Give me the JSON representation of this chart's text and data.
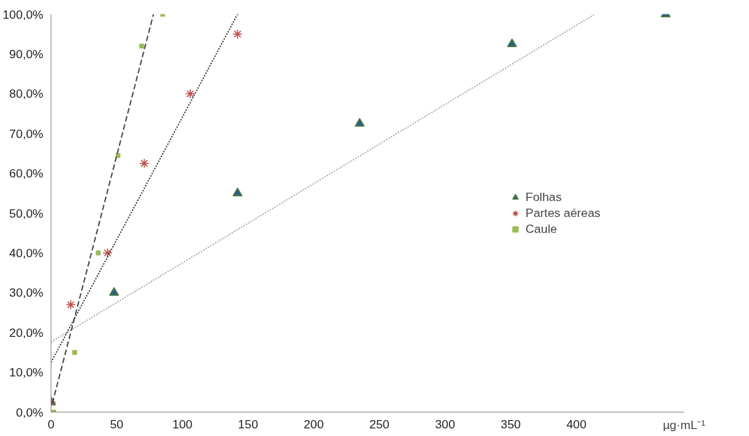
{
  "chart_data": {
    "type": "scatter",
    "xlabel": "µg·mL⁻¹",
    "xlim": [
      0,
      482
    ],
    "ylim": [
      0,
      100
    ],
    "xticks": [
      0,
      50,
      100,
      150,
      200,
      250,
      300,
      350,
      400
    ],
    "yticks": [
      {
        "value": 0,
        "label": "0,0%"
      },
      {
        "value": 10,
        "label": "10,0%"
      },
      {
        "value": 20,
        "label": "20,0%"
      },
      {
        "value": 30,
        "label": "30,0%"
      },
      {
        "value": 40,
        "label": "40,0%"
      },
      {
        "value": 50,
        "label": "50,0%"
      },
      {
        "value": 60,
        "label": "60,0%"
      },
      {
        "value": 70,
        "label": "70,0%"
      },
      {
        "value": 80,
        "label": "80,0%"
      },
      {
        "value": 90,
        "label": "90,0%"
      },
      {
        "value": 100,
        "label": "100,0%"
      }
    ],
    "grid": false,
    "legend": "right",
    "series": [
      {
        "name": "Folhas",
        "color": "#2f5f7f",
        "marker": "triangle",
        "x": [
          0,
          48,
          142,
          235,
          351,
          468
        ],
        "values": [
          2.5,
          30,
          55,
          72.5,
          92.5,
          100
        ]
      },
      {
        "name": "Partes aéreas",
        "color": "#c0504d",
        "marker": "cross",
        "x": [
          0,
          15,
          43,
          71,
          106,
          142
        ],
        "values": [
          2.5,
          27,
          40,
          62.5,
          80,
          95
        ]
      },
      {
        "name": "Caule",
        "color": "#9bbb59",
        "marker": "square",
        "x": [
          2,
          18,
          36,
          51,
          69,
          85
        ],
        "values": [
          0,
          15,
          40,
          64.5,
          92,
          100
        ]
      },
      {
        "type": "line",
        "color": "#a6a6a6",
        "line_style": "dotted",
        "x": [
          0,
          414
        ],
        "values": [
          17.6,
          100
        ]
      },
      {
        "type": "line",
        "color": "#303030",
        "line_style": "dotted",
        "x": [
          0,
          142
        ],
        "values": [
          12.5,
          100
        ]
      },
      {
        "type": "line",
        "color": "#404040",
        "line_style": "dashed",
        "x": [
          1,
          78
        ],
        "values": [
          2.2,
          100
        ]
      }
    ]
  }
}
